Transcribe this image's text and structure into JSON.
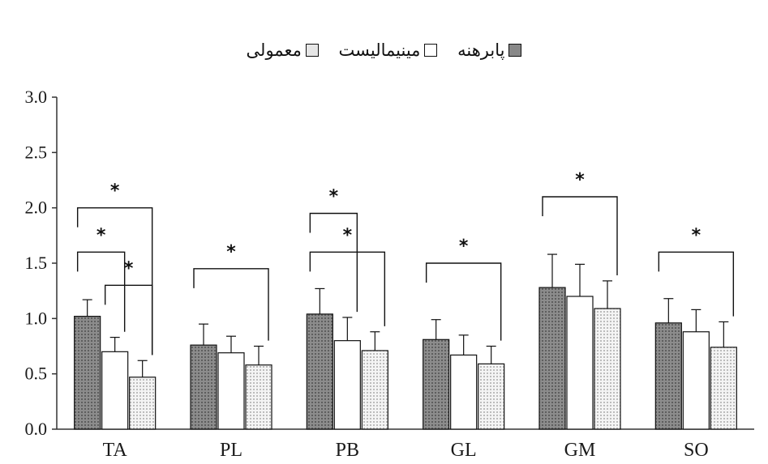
{
  "chart_data": {
    "type": "bar",
    "categories": [
      "TA",
      "PL",
      "PB",
      "GL",
      "GM",
      "SO"
    ],
    "series": [
      {
        "name": "پابرهنه",
        "values": [
          1.02,
          0.76,
          1.04,
          0.81,
          1.28,
          0.96
        ],
        "errors": [
          0.15,
          0.19,
          0.23,
          0.18,
          0.3,
          0.22
        ],
        "color": "#888888",
        "pattern": "dark-dots"
      },
      {
        "name": "مینیمالیست",
        "values": [
          0.7,
          0.69,
          0.8,
          0.67,
          1.2,
          0.88
        ],
        "errors": [
          0.13,
          0.15,
          0.21,
          0.18,
          0.29,
          0.2
        ],
        "color": "#ffffff",
        "pattern": "none"
      },
      {
        "name": "معمولی",
        "values": [
          0.47,
          0.58,
          0.71,
          0.59,
          1.09,
          0.74
        ],
        "errors": [
          0.15,
          0.17,
          0.17,
          0.16,
          0.25,
          0.23
        ],
        "color": "#e6e6e6",
        "pattern": "light-dots"
      }
    ],
    "yticks": [
      "0.0",
      "0.5",
      "1.0",
      "1.5",
      "2.0",
      "2.5",
      "3.0"
    ],
    "ylim": [
      0,
      3.0
    ],
    "legend_position": "top-center",
    "significance": [
      {
        "category": "TA",
        "from": 0,
        "to": 2,
        "level": 2.0,
        "label": "*"
      },
      {
        "category": "TA",
        "from": 0,
        "to": 1,
        "level": 1.6,
        "label": "*"
      },
      {
        "category": "TA",
        "from": 1,
        "to": 2,
        "level": 1.3,
        "label": "*"
      },
      {
        "category": "PL",
        "from": 0,
        "to": 2,
        "level": 1.45,
        "label": "*"
      },
      {
        "category": "PB",
        "from": 0,
        "to": 1,
        "level": 1.95,
        "label": "*"
      },
      {
        "category": "PB",
        "from": 0,
        "to": 2,
        "level": 1.6,
        "label": "*"
      },
      {
        "category": "GL",
        "from": 0,
        "to": 2,
        "level": 1.5,
        "label": "*"
      },
      {
        "category": "GM",
        "from": 0,
        "to": 2,
        "level": 2.1,
        "label": "*"
      },
      {
        "category": "SO",
        "from": 0,
        "to": 2,
        "level": 1.6,
        "label": "*"
      }
    ]
  }
}
